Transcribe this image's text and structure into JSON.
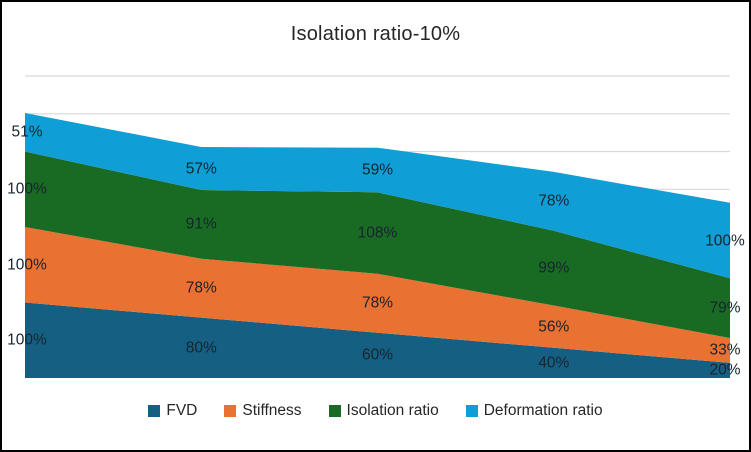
{
  "title": "Isolation ratio-10%",
  "frame": {
    "border_color": "#000000",
    "background_color": "#FFFFFF"
  },
  "chart_data": {
    "type": "area",
    "stacked": true,
    "title": "Isolation ratio-10%",
    "series": [
      {
        "name": "FVD",
        "color": "#156082",
        "values": [
          100,
          80,
          60,
          40,
          20
        ]
      },
      {
        "name": "Stiffness",
        "color": "#E97132",
        "values": [
          100,
          78,
          78,
          56,
          33
        ]
      },
      {
        "name": "Isolation ratio",
        "color": "#196B24",
        "values": [
          100,
          91,
          108,
          99,
          79
        ]
      },
      {
        "name": "Deformation ratio",
        "color": "#0F9ED5",
        "values": [
          51,
          57,
          59,
          78,
          100
        ]
      }
    ],
    "data_labels_visible": true,
    "data_label_suffix": "%",
    "data_label_color": "#17242F",
    "ylim": [
      0,
      400
    ],
    "grid_on": true,
    "grid_step": 50,
    "grid_color": "#D9D9D9",
    "title_color": "#262626",
    "legend_text_color": "#262626",
    "legend_position": "bottom",
    "x_axis_labels_visible": false,
    "y_axis_labels_visible": false
  }
}
